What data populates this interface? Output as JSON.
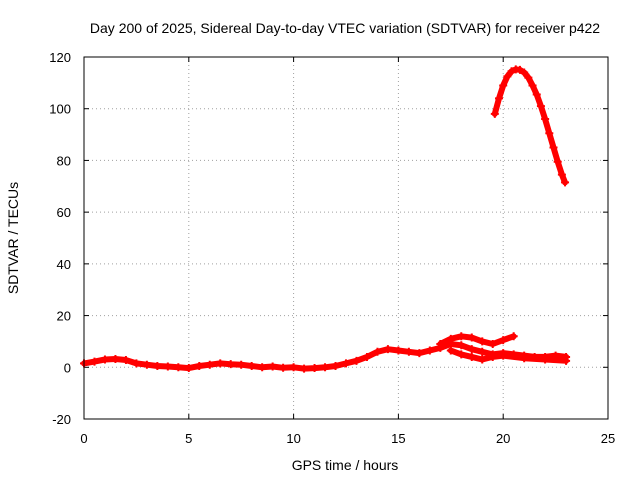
{
  "chart_data": {
    "type": "scatter",
    "title": "Day 200 of 2025, Sidereal Day-to-day VTEC variation (SDTVAR) for receiver p422",
    "xlabel": "GPS time / hours",
    "ylabel": "SDTVAR / TECUs",
    "xlim": [
      0,
      25
    ],
    "ylim": [
      -20,
      120
    ],
    "xticks": [
      0,
      5,
      10,
      15,
      20,
      25
    ],
    "yticks": [
      -20,
      0,
      20,
      40,
      60,
      80,
      100,
      120
    ],
    "grid": true,
    "marker": "+",
    "series": [
      {
        "name": "low-band SDTVAR",
        "color": "#ff0000",
        "x": [
          0.0,
          0.5,
          1.0,
          1.5,
          2.0,
          2.5,
          3.0,
          3.5,
          4.0,
          4.5,
          5.0,
          5.5,
          6.0,
          6.5,
          7.0,
          7.5,
          8.0,
          8.5,
          9.0,
          9.5,
          10.0,
          10.5,
          11.0,
          11.5,
          12.0,
          12.5,
          13.0,
          13.5,
          14.0,
          14.5,
          15.0,
          15.5,
          16.0,
          16.5,
          17.0,
          17.5,
          18.0,
          18.5,
          19.0,
          19.5,
          20.0,
          20.5,
          21.0,
          21.5,
          22.0,
          22.5,
          23.0
        ],
        "y": [
          1.5,
          2.2,
          3.0,
          3.2,
          2.8,
          1.5,
          1.0,
          0.5,
          0.3,
          0.0,
          -0.3,
          0.5,
          1.0,
          1.5,
          1.2,
          1.0,
          0.5,
          0.0,
          0.3,
          -0.2,
          0.0,
          -0.5,
          -0.3,
          0.0,
          0.5,
          1.5,
          2.5,
          4.0,
          6.0,
          7.0,
          6.5,
          6.0,
          5.5,
          6.5,
          7.5,
          9.0,
          8.5,
          7.0,
          6.0,
          5.0,
          5.5,
          5.0,
          4.5,
          4.0,
          4.0,
          4.5,
          4.0
        ]
      },
      {
        "name": "upper-band SDTVAR",
        "color": "#ff0000",
        "x": [
          17.0,
          17.5,
          18.0,
          18.5,
          19.0,
          19.5,
          20.0,
          20.5
        ],
        "y": [
          9.0,
          11.0,
          12.0,
          11.5,
          10.0,
          9.0,
          10.5,
          12.0
        ]
      },
      {
        "name": "lower-band SDTVAR",
        "color": "#ff0000",
        "x": [
          17.5,
          18.0,
          18.5,
          19.0,
          19.5,
          20.0,
          21.0,
          22.0,
          23.0
        ],
        "y": [
          6.5,
          5.0,
          4.0,
          3.0,
          4.0,
          4.5,
          3.5,
          3.0,
          2.5
        ]
      },
      {
        "name": "arc SDTVAR",
        "color": "#ff0000",
        "x": [
          19.6,
          19.8,
          20.0,
          20.2,
          20.4,
          20.6,
          20.8,
          21.0,
          21.2,
          21.4,
          21.6,
          21.8,
          22.0,
          22.2,
          22.4,
          22.6,
          22.8,
          22.95
        ],
        "y": [
          98.0,
          104.0,
          109.0,
          112.5,
          114.5,
          115.2,
          115.0,
          114.0,
          112.0,
          109.0,
          105.5,
          101.0,
          96.0,
          90.5,
          85.0,
          79.5,
          74.5,
          71.5
        ]
      }
    ]
  }
}
